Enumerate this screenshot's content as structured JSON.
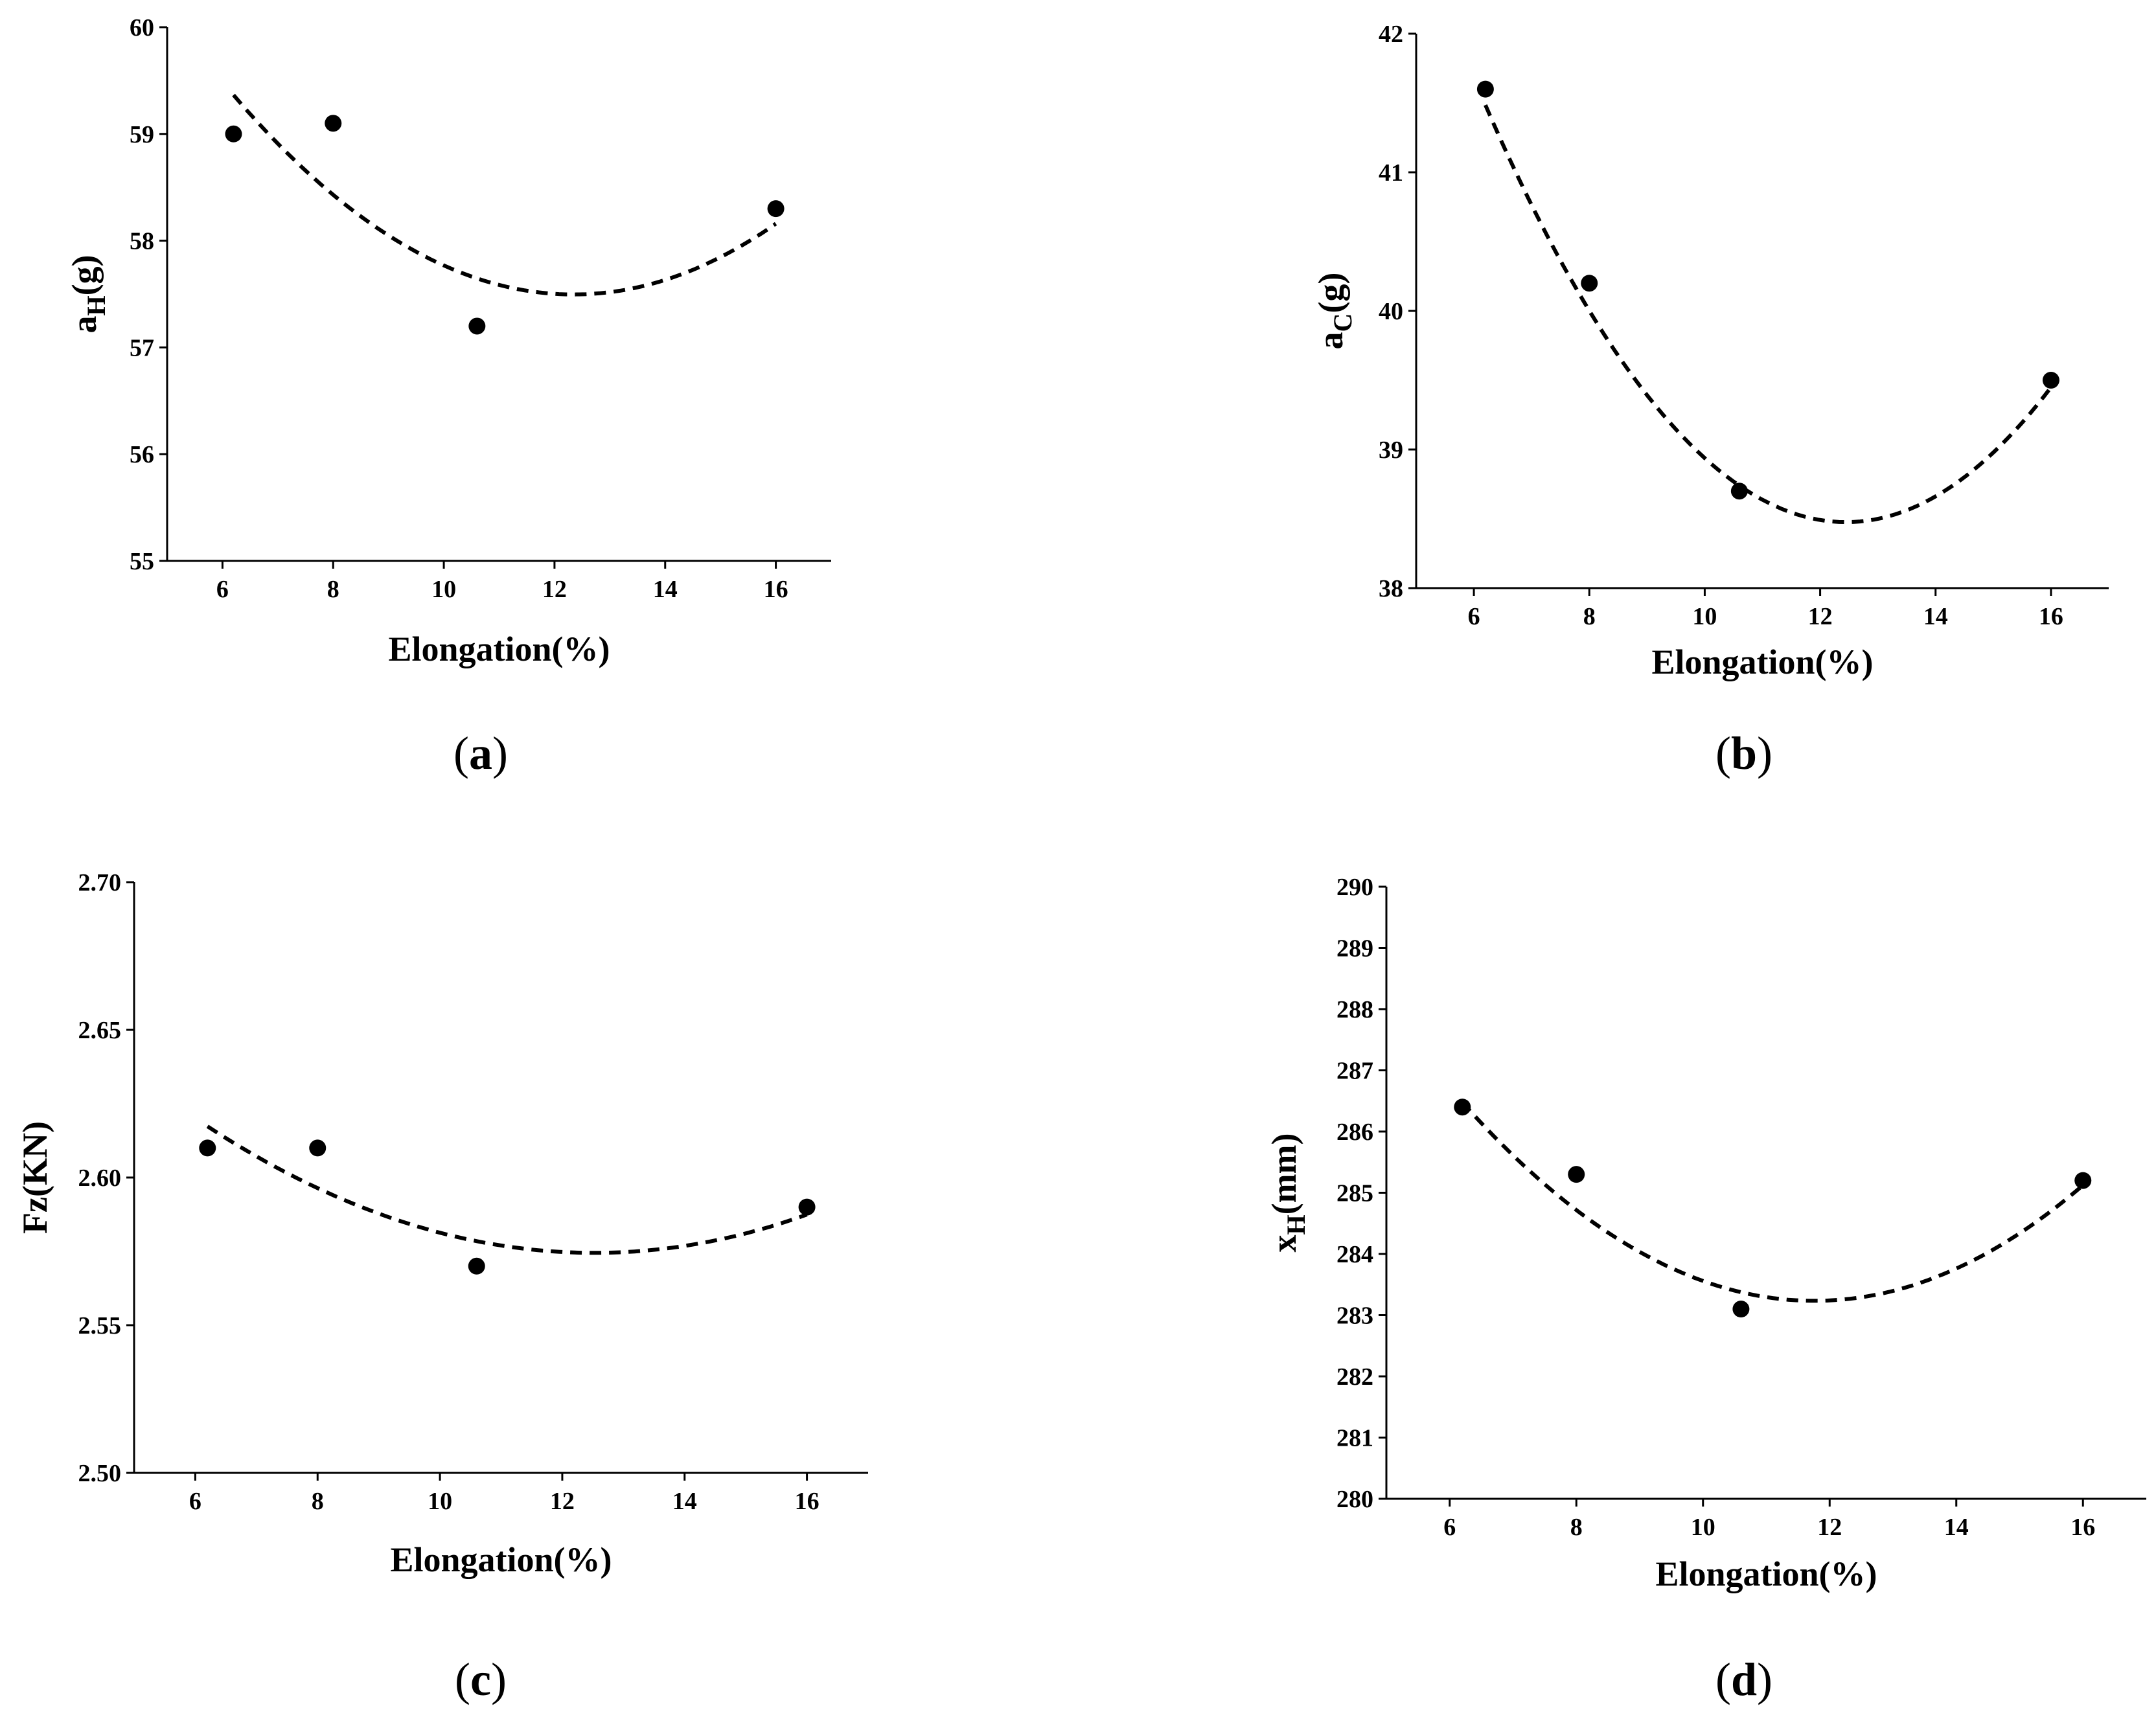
{
  "chart_data": [
    {
      "type": "scatter",
      "panel": "a",
      "caption": "a",
      "xlabel": "Elongation(%)",
      "ylabel_main": "a",
      "ylabel_sub": "H",
      "ylabel_suffix": "(g)",
      "xlim": [
        5,
        17
      ],
      "ylim": [
        55,
        60
      ],
      "xticks": [
        6,
        8,
        10,
        12,
        14,
        16
      ],
      "yticks": [
        55,
        56,
        57,
        58,
        59,
        60
      ],
      "ytick_labels": [
        "55",
        "56",
        "57",
        "58",
        "59",
        "60"
      ],
      "points": [
        {
          "x": 6.2,
          "y": 59.0
        },
        {
          "x": 8,
          "y": 59.1
        },
        {
          "x": 10.6,
          "y": 57.2
        },
        {
          "x": 16,
          "y": 58.3
        }
      ],
      "fit": {
        "style": "dashed",
        "kind": "quadratic",
        "coef": [
          0.04952,
          -1.2224,
          65.04
        ],
        "x_range": [
          6.2,
          16
        ]
      }
    },
    {
      "type": "scatter",
      "panel": "b",
      "caption": "b",
      "xlabel": "Elongation(%)",
      "ylabel_main": "a",
      "ylabel_sub": "C",
      "ylabel_suffix": "(g)",
      "xlim": [
        5,
        17
      ],
      "ylim": [
        38,
        42
      ],
      "xticks": [
        6,
        8,
        10,
        12,
        14,
        16
      ],
      "yticks": [
        38,
        39,
        40,
        41,
        42
      ],
      "ytick_labels": [
        "38",
        "39",
        "40",
        "41",
        "42"
      ],
      "points": [
        {
          "x": 6.2,
          "y": 41.6
        },
        {
          "x": 8,
          "y": 40.2
        },
        {
          "x": 10.6,
          "y": 38.7
        },
        {
          "x": 16,
          "y": 39.5
        }
      ],
      "fit": {
        "style": "dashed",
        "kind": "quadratic",
        "coef": [
          0.07708,
          -1.919,
          50.42
        ],
        "x_range": [
          6.2,
          16
        ]
      }
    },
    {
      "type": "scatter",
      "panel": "c",
      "caption": "c",
      "xlabel": "Elongation(%)",
      "ylabel_main": "Fz(KN)",
      "ylabel_sub": "",
      "ylabel_suffix": "",
      "xlim": [
        5,
        17
      ],
      "ylim": [
        2.5,
        2.7
      ],
      "xticks": [
        6,
        8,
        10,
        12,
        14,
        16
      ],
      "yticks": [
        2.5,
        2.55,
        2.6,
        2.65,
        2.7
      ],
      "ytick_labels": [
        "2.50",
        "2.55",
        "2.60",
        "2.65",
        "2.70"
      ],
      "points": [
        {
          "x": 6.2,
          "y": 2.61
        },
        {
          "x": 8,
          "y": 2.61
        },
        {
          "x": 10.6,
          "y": 2.57
        },
        {
          "x": 16,
          "y": 2.59
        }
      ],
      "fit": {
        "style": "dashed",
        "kind": "quadratic",
        "coef": [
          0.0010715,
          -0.026834,
          2.7425
        ],
        "x_range": [
          6.2,
          16
        ]
      }
    },
    {
      "type": "scatter",
      "panel": "d",
      "caption": "d",
      "xlabel": "Elongation(%)",
      "ylabel_main": "x",
      "ylabel_sub": "H",
      "ylabel_suffix": "(mm)",
      "xlim": [
        5,
        17
      ],
      "ylim": [
        280,
        290
      ],
      "xticks": [
        6,
        8,
        10,
        12,
        14,
        16
      ],
      "yticks": [
        280,
        281,
        282,
        283,
        284,
        285,
        286,
        287,
        288,
        289,
        290
      ],
      "ytick_labels": [
        "280",
        "281",
        "282",
        "283",
        "284",
        "285",
        "286",
        "287",
        "288",
        "289",
        "290"
      ],
      "points": [
        {
          "x": 6.2,
          "y": 286.4
        },
        {
          "x": 8,
          "y": 285.3
        },
        {
          "x": 10.6,
          "y": 283.1
        },
        {
          "x": 16,
          "y": 285.2
        }
      ],
      "fit": {
        "style": "dashed",
        "kind": "quadratic",
        "coef": [
          0.10498,
          -2.4689,
          297.75
        ],
        "x_range": [
          6.2,
          16
        ]
      }
    }
  ]
}
